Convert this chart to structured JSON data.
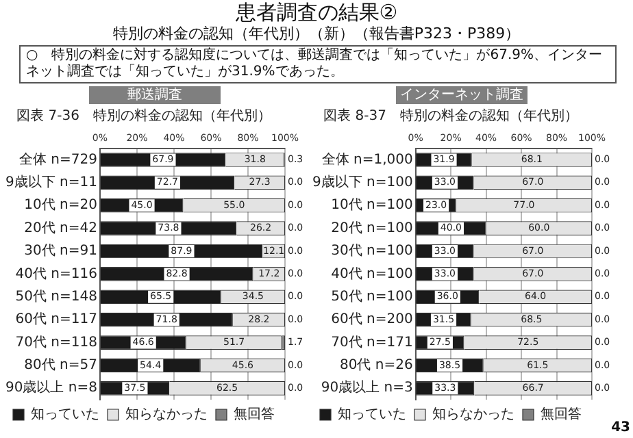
{
  "chart_data": [
    {
      "type": "bar",
      "orientation": "horizontal",
      "stacked": true,
      "title": "図表 7-36　特別の料金の認知（年代別）",
      "subtitle": "郵送調査",
      "annotations": [
        "患者調査の結果②",
        "特別の料金の認知（年代別）（新）（報告書P323・P389）",
        "○　特別の料金に対する認知度については、郵送調査では「知っていた」が67.9%、インターネット調査では「知っていた」が31.9%であった。"
      ],
      "categories": [
        "全体 n=729",
        "9歳以下 n=11",
        "10代 n=20",
        "20代 n=42",
        "30代 n=91",
        "40代 n=116",
        "50代 n=148",
        "60代 n=117",
        "70代 n=118",
        "80代 n=57",
        "90歳以上 n=8"
      ],
      "series": [
        {
          "name": "知っていた",
          "color": "#1a1a1a",
          "values": [
            67.9,
            72.7,
            45.0,
            73.8,
            87.9,
            82.8,
            65.5,
            71.8,
            46.6,
            54.4,
            37.5
          ],
          "value_labels": [
            "67.9",
            "72.7",
            "45.0",
            "73.8",
            "87.9",
            "82.8",
            "65.5",
            "71.8",
            "46.6",
            "54.4",
            "37.5"
          ]
        },
        {
          "name": "知らなかった",
          "color": "#e3e3e3",
          "values": [
            31.8,
            27.3,
            55.0,
            26.2,
            12.1,
            17.2,
            34.5,
            28.2,
            51.7,
            45.6,
            62.5
          ],
          "value_labels": [
            "31.8",
            "27.3",
            "55.0",
            "26.2",
            "12.1",
            "17.2",
            "34.5",
            "28.2",
            "51.7",
            "45.6",
            "62.5"
          ]
        },
        {
          "name": "無回答",
          "color": "#808080",
          "values": [
            0.3,
            0.0,
            0.0,
            0.0,
            0.0,
            0.0,
            0.0,
            0.0,
            1.7,
            0.0,
            0.0
          ],
          "value_labels": [
            "0.3",
            "0.0",
            "0.0",
            "0.0",
            "0.0",
            "0.0",
            "0.0",
            "0.0",
            "1.7",
            "0.0",
            "0.0"
          ]
        }
      ],
      "xlim": [
        0,
        100
      ],
      "xticks": [
        {
          "value": 0,
          "label": "0%"
        },
        {
          "value": 20,
          "label": "20%"
        },
        {
          "value": 40,
          "label": "40%"
        },
        {
          "value": 60,
          "label": "60%"
        },
        {
          "value": 80,
          "label": "80%"
        },
        {
          "value": 100,
          "label": "100%"
        }
      ],
      "grid": "x",
      "legend": "bottom"
    },
    {
      "type": "bar",
      "orientation": "horizontal",
      "stacked": true,
      "title": "図表 8-37　特別の料金の認知（年代別）",
      "subtitle": "インターネット調査",
      "annotations": [
        "43"
      ],
      "categories": [
        "全体 n=1,000",
        "9歳以下 n=100",
        "10代 n=100",
        "20代 n=100",
        "30代 n=100",
        "40代 n=100",
        "50代 n=100",
        "60代 n=200",
        "70代 n=171",
        "80代 n=26",
        "90歳以上 n=3"
      ],
      "series": [
        {
          "name": "知っていた",
          "color": "#1a1a1a",
          "values": [
            31.9,
            33.0,
            23.0,
            40.0,
            33.0,
            33.0,
            36.0,
            31.5,
            27.5,
            38.5,
            33.3
          ],
          "value_labels": [
            "31.9",
            "33.0",
            "23.0",
            "40.0",
            "33.0",
            "33.0",
            "36.0",
            "31.5",
            "27.5",
            "38.5",
            "33.3"
          ]
        },
        {
          "name": "知らなかった",
          "color": "#e3e3e3",
          "values": [
            68.1,
            67.0,
            77.0,
            60.0,
            67.0,
            67.0,
            64.0,
            68.5,
            72.5,
            61.5,
            66.7
          ],
          "value_labels": [
            "68.1",
            "67.0",
            "77.0",
            "60.0",
            "67.0",
            "67.0",
            "64.0",
            "68.5",
            "72.5",
            "61.5",
            "66.7"
          ]
        },
        {
          "name": "無回答",
          "color": "#808080",
          "values": [
            0.0,
            0.0,
            0.0,
            0.0,
            0.0,
            0.0,
            0.0,
            0.0,
            0.0,
            0.0,
            0.0
          ],
          "value_labels": [
            "0.0",
            "0.0",
            "0.0",
            "0.0",
            "0.0",
            "0.0",
            "0.0",
            "0.0",
            "0.0",
            "0.0",
            "0.0"
          ]
        }
      ],
      "xlim": [
        0,
        100
      ],
      "xticks": [
        {
          "value": 0,
          "label": "0%"
        },
        {
          "value": 20,
          "label": "20%"
        },
        {
          "value": 40,
          "label": "40%"
        },
        {
          "value": 60,
          "label": "60%"
        },
        {
          "value": 80,
          "label": "80%"
        },
        {
          "value": 100,
          "label": "100%"
        }
      ],
      "grid": "x",
      "legend": "bottom"
    }
  ]
}
